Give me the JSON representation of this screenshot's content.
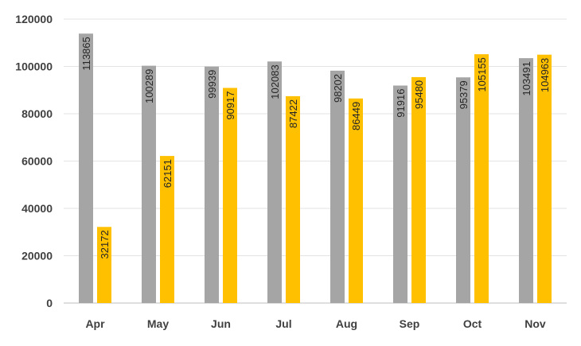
{
  "chart_data": {
    "type": "bar",
    "categories": [
      "Apr",
      "May",
      "Jun",
      "Jul",
      "Aug",
      "Sep",
      "Oct",
      "Nov"
    ],
    "series": [
      {
        "values": [
          113865,
          100289,
          99939,
          102083,
          98202,
          91916,
          95379,
          103491
        ],
        "color": "#A5A5A5"
      },
      {
        "values": [
          32172,
          62151,
          90917,
          87422,
          86449,
          95480,
          105155,
          104963
        ],
        "color": "#FFC000"
      }
    ],
    "ylim": [
      0,
      120000
    ],
    "yticks": [
      0,
      20000,
      40000,
      60000,
      80000,
      100000,
      120000
    ],
    "grid": true,
    "data_labels": "inside-end, rotated",
    "legend": "none"
  }
}
